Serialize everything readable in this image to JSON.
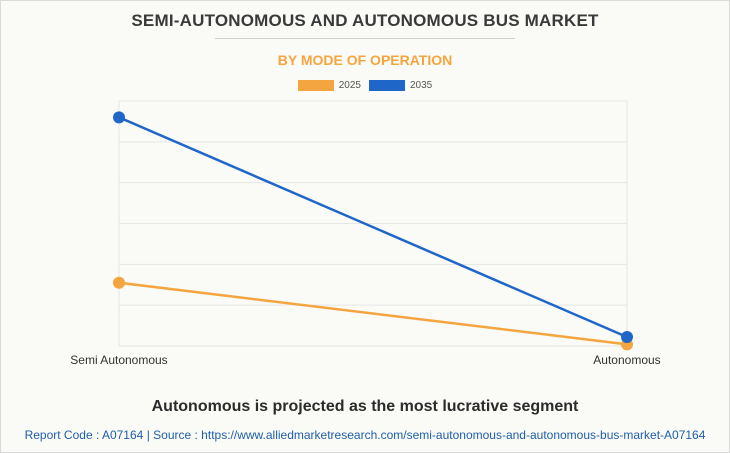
{
  "header": {
    "title": "SEMI-AUTONOMOUS AND AUTONOMOUS BUS MARKET",
    "subtitle": "BY MODE OF OPERATION"
  },
  "colors": {
    "subtitle": "#f5a540",
    "series_2025": "#f5a540",
    "series_2035": "#1e66c8",
    "grid": "#e6e6e6",
    "axis_text": "#333333"
  },
  "chart_data": {
    "type": "line",
    "categories": [
      "Semi Autonomous",
      "Autonomous"
    ],
    "series": [
      {
        "name": "2025",
        "values": [
          0.155,
          0.004
        ]
      },
      {
        "name": "2035",
        "values": [
          0.56,
          0.022
        ]
      }
    ],
    "ylim": [
      0,
      0.6
    ],
    "grid": true,
    "legend_position": "top-center",
    "y_tick_labels_shown": false
  },
  "caption": "Autonomous is projected as the most lucrative segment",
  "footer": {
    "report_code": "Report Code : A07164",
    "separator": "|",
    "source": "Source : https://www.alliedmarketresearch.com/semi-autonomous-and-autonomous-bus-market-A07164"
  }
}
